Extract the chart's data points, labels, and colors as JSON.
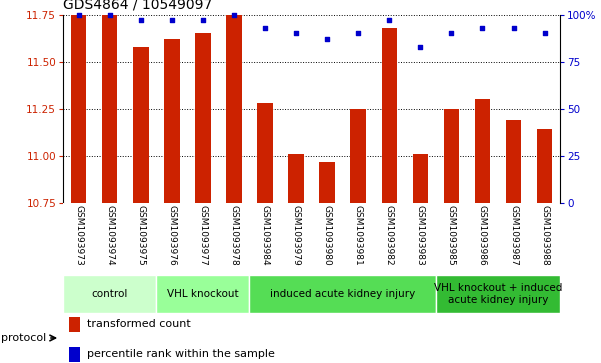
{
  "title": "GDS4864 / 10549097",
  "samples": [
    "GSM1093973",
    "GSM1093974",
    "GSM1093975",
    "GSM1093976",
    "GSM1093977",
    "GSM1093978",
    "GSM1093984",
    "GSM1093979",
    "GSM1093980",
    "GSM1093981",
    "GSM1093982",
    "GSM1093983",
    "GSM1093985",
    "GSM1093986",
    "GSM1093987",
    "GSM1093988"
  ],
  "bar_values": [
    11.75,
    11.75,
    11.58,
    11.62,
    11.65,
    11.75,
    11.28,
    11.01,
    10.97,
    11.25,
    11.68,
    11.01,
    11.25,
    11.3,
    11.19,
    11.14
  ],
  "dot_values": [
    100,
    100,
    97,
    97,
    97,
    100,
    93,
    90,
    87,
    90,
    97,
    83,
    90,
    93,
    93,
    90
  ],
  "ylim_left": [
    10.75,
    11.75
  ],
  "ylim_right": [
    0,
    100
  ],
  "yticks_left": [
    10.75,
    11.0,
    11.25,
    11.5,
    11.75
  ],
  "yticks_right": [
    0,
    25,
    50,
    75,
    100
  ],
  "bar_color": "#cc2200",
  "dot_color": "#0000cc",
  "groups": [
    {
      "label": "control",
      "start": 0,
      "end": 2,
      "color": "#ccffcc"
    },
    {
      "label": "VHL knockout",
      "start": 3,
      "end": 5,
      "color": "#99ff99"
    },
    {
      "label": "induced acute kidney injury",
      "start": 6,
      "end": 11,
      "color": "#55dd55"
    },
    {
      "label": "VHL knockout + induced\nacute kidney injury",
      "start": 12,
      "end": 15,
      "color": "#33bb33"
    }
  ],
  "legend_items": [
    {
      "label": "transformed count",
      "color": "#cc2200"
    },
    {
      "label": "percentile rank within the sample",
      "color": "#0000cc"
    }
  ],
  "title_fontsize": 10,
  "tick_fontsize": 7.5,
  "sample_fontsize": 6.5,
  "group_fontsize": 7.5,
  "legend_fontsize": 8,
  "bar_width": 0.5,
  "xlab_bg": "#c8c8c8",
  "xlab_line_color": "#ffffff"
}
